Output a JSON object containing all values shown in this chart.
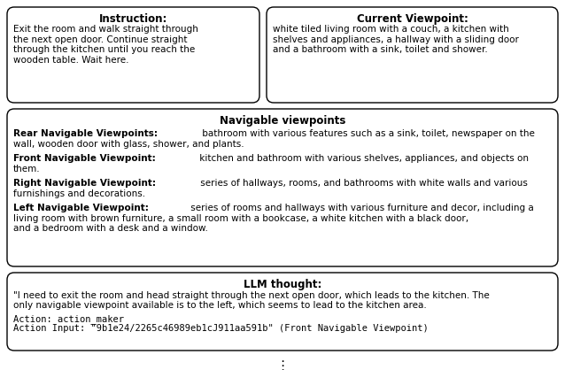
{
  "bg_color": "#ffffff",
  "box_bg": "#ffffff",
  "box_edge": "#000000",
  "instruction_title": "Instruction:",
  "instruction_body": "Exit the room and walk straight through\nthe next open door. Continue straight\nthrough the kitchen until you reach the\nwooden table. Wait here.",
  "viewpoint_title": "Current Viewpoint:",
  "viewpoint_body": "white tiled living room with a couch, a kitchen with\nshelves and appliances, a hallway with a sliding door\nand a bathroom with a sink, toilet and shower.",
  "nav_title": "Navigable viewpoints",
  "nav_entries": [
    {
      "bold": "Rear Navigable Viewpoints:",
      "normal": " bathroom with various features such as a sink, toilet, newspaper on the\nwall, wooden door with glass, shower, and plants."
    },
    {
      "bold": "Front Navigable Viewpoint:",
      "normal": " kitchen and bathroom with various shelves, appliances, and objects on\nthem."
    },
    {
      "bold": "Right Navigable Viewpoint:",
      "normal": " series of hallways, rooms, and bathrooms with white walls and various\nfurnishings and decorations."
    },
    {
      "bold": "Left Navigable Viewpoint:",
      "normal": " series of rooms and hallways with various furniture and decor, including a\nliving room with brown furniture, a small room with a bookcase, a white kitchen with a black door,\nand a bedroom with a desk and a window."
    }
  ],
  "llm_title": "LLM thought:",
  "llm_body_line1": "\"I need to exit the room and head straight through the next open door, which leads to the kitchen. The",
  "llm_body_line2": "only navigable viewpoint available is to the left, which seems to lead to the kitchen area.",
  "llm_action": "Action: action_maker",
  "llm_input": "Action Input: \"9b1e24/2265c46989eb1cJ911aa591b\" (Front Navigable Viewpoint)",
  "dots": "⋮",
  "font_size_title": 8.5,
  "font_size_body": 7.5,
  "fig_w": 6.38,
  "fig_h": 4.18,
  "dpi": 100
}
